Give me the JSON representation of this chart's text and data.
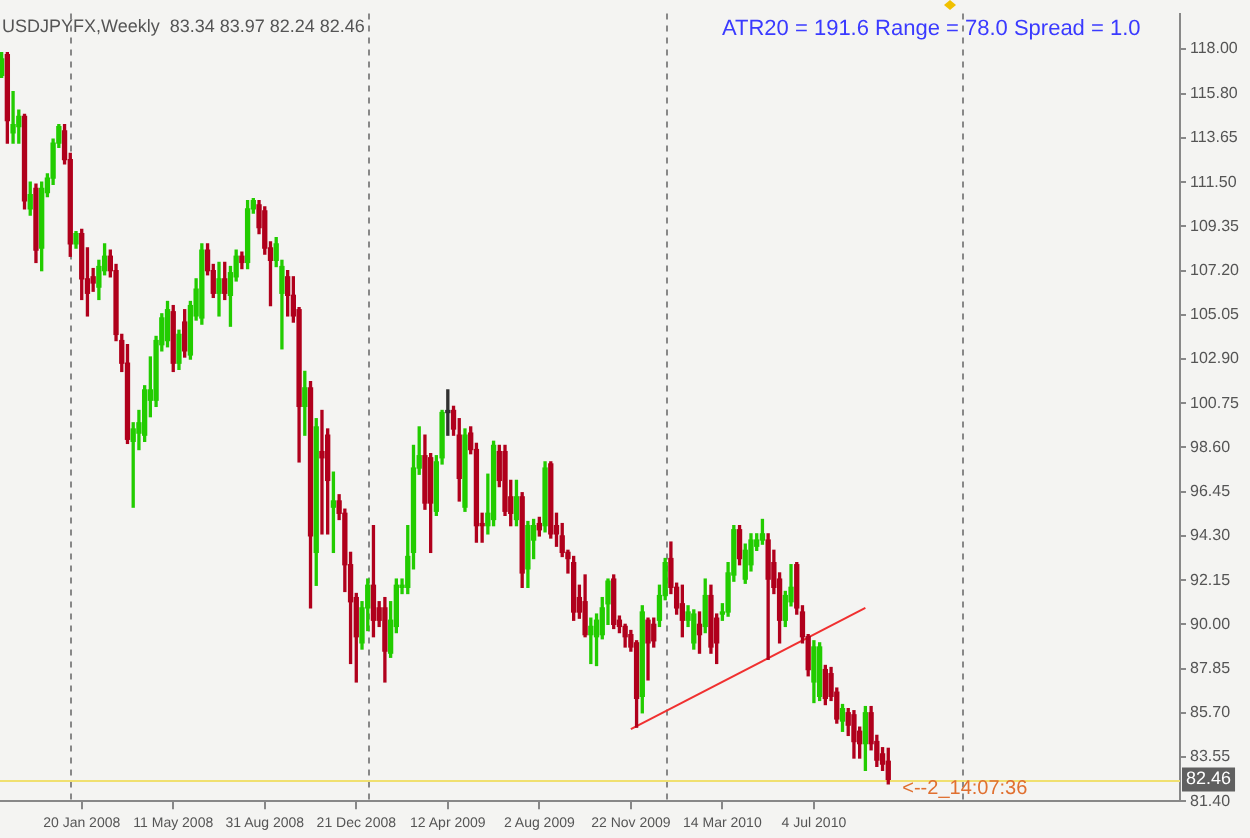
{
  "chart_data": {
    "type": "candlestick",
    "title": "USDJPYFX,Weekly  83.34 83.97 82.24 82.46",
    "annotations": [
      "ATR20 = 191.6 Range = 78.0 Spread = 1.0",
      {
        "text": "<--2_14:07:36",
        "x": "2010-10-03",
        "y": 82.0
      }
    ],
    "x": [
      "2007-10-14",
      "2007-10-21",
      "2007-10-28",
      "2007-11-04",
      "2007-11-11",
      "2007-11-18",
      "2007-11-25",
      "2007-12-02",
      "2007-12-09",
      "2007-12-16",
      "2007-12-23",
      "2007-12-30",
      "2008-01-06",
      "2008-01-13",
      "2008-01-20",
      "2008-01-27",
      "2008-02-03",
      "2008-02-10",
      "2008-02-17",
      "2008-02-24",
      "2008-03-02",
      "2008-03-09",
      "2008-03-16",
      "2008-03-23",
      "2008-03-30",
      "2008-04-06",
      "2008-04-13",
      "2008-04-20",
      "2008-04-27",
      "2008-05-04",
      "2008-05-11",
      "2008-05-18",
      "2008-05-25",
      "2008-06-01",
      "2008-06-08",
      "2008-06-15",
      "2008-06-22",
      "2008-06-29",
      "2008-07-06",
      "2008-07-13",
      "2008-07-20",
      "2008-07-27",
      "2008-08-03",
      "2008-08-10",
      "2008-08-17",
      "2008-08-24",
      "2008-08-31",
      "2008-09-07",
      "2008-09-14",
      "2008-09-21",
      "2008-09-28",
      "2008-10-05",
      "2008-10-12",
      "2008-10-19",
      "2008-10-26",
      "2008-11-02",
      "2008-11-09",
      "2008-11-16",
      "2008-11-23",
      "2008-11-30",
      "2008-12-07",
      "2008-12-14",
      "2008-12-21",
      "2008-12-28",
      "2009-01-04",
      "2009-01-11",
      "2009-01-18",
      "2009-01-25",
      "2009-02-01",
      "2009-02-08",
      "2009-02-15",
      "2009-02-22",
      "2009-03-01",
      "2009-03-08",
      "2009-03-15",
      "2009-03-22",
      "2009-03-29",
      "2009-04-05",
      "2009-04-12",
      "2009-04-19",
      "2009-04-26",
      "2009-05-03",
      "2009-05-10",
      "2009-05-17",
      "2009-05-24",
      "2009-05-31",
      "2009-06-07",
      "2009-06-14",
      "2009-06-21",
      "2009-06-28",
      "2009-07-05",
      "2009-07-12",
      "2009-07-19",
      "2009-07-26",
      "2009-08-02",
      "2009-08-09",
      "2009-08-16",
      "2009-08-23",
      "2009-08-30",
      "2009-09-06",
      "2009-09-13",
      "2009-09-20",
      "2009-09-27",
      "2009-10-04",
      "2009-10-11",
      "2009-10-18",
      "2009-10-25",
      "2009-11-01",
      "2009-11-08",
      "2009-11-15",
      "2009-11-22",
      "2009-11-29",
      "2009-12-06",
      "2009-12-13",
      "2009-12-20",
      "2009-12-27",
      "2010-01-03",
      "2010-01-10",
      "2010-01-17",
      "2010-01-24",
      "2010-01-31",
      "2010-02-07",
      "2010-02-14",
      "2010-02-21",
      "2010-02-28",
      "2010-03-07",
      "2010-03-14",
      "2010-03-21",
      "2010-03-28",
      "2010-04-04",
      "2010-04-11",
      "2010-04-18",
      "2010-04-25",
      "2010-05-02",
      "2010-05-09",
      "2010-05-16",
      "2010-05-23",
      "2010-05-30",
      "2010-06-06",
      "2010-06-13",
      "2010-06-20",
      "2010-06-27",
      "2010-07-04",
      "2010-07-11",
      "2010-07-18",
      "2010-07-25",
      "2010-08-01",
      "2010-08-08",
      "2010-08-15",
      "2010-08-22",
      "2010-08-29",
      "2010-09-05",
      "2010-09-12",
      "2010-09-19",
      "2010-09-26",
      "2010-10-03"
    ],
    "ohlc": [
      [
        116.7,
        117.8,
        116.6,
        117.5
      ],
      [
        117.7,
        117.8,
        113.4,
        114.5
      ],
      [
        113.9,
        115.9,
        113.4,
        114.3
      ],
      [
        114.2,
        115.0,
        113.4,
        114.7
      ],
      [
        114.7,
        114.8,
        110.2,
        110.6
      ],
      [
        110.2,
        111.5,
        109.9,
        110.9
      ],
      [
        111.2,
        111.4,
        107.6,
        108.2
      ],
      [
        108.3,
        111.5,
        107.2,
        111.2
      ],
      [
        111.0,
        111.9,
        110.8,
        111.7
      ],
      [
        111.7,
        113.6,
        111.4,
        113.4
      ],
      [
        113.4,
        114.3,
        113.2,
        114.2
      ],
      [
        114.0,
        114.3,
        112.4,
        112.6
      ],
      [
        112.6,
        112.9,
        107.9,
        108.5
      ],
      [
        108.5,
        109.1,
        108.3,
        109.0
      ],
      [
        109.0,
        109.2,
        105.8,
        106.8
      ],
      [
        106.8,
        108.3,
        105.0,
        106.1
      ],
      [
        106.9,
        107.3,
        106.2,
        106.6
      ],
      [
        106.4,
        107.7,
        105.8,
        107.4
      ],
      [
        107.2,
        108.5,
        107.0,
        107.9
      ],
      [
        107.9,
        108.2,
        106.9,
        107.2
      ],
      [
        107.2,
        107.5,
        103.8,
        104.1
      ],
      [
        103.8,
        104.1,
        102.3,
        102.7
      ],
      [
        102.7,
        103.6,
        98.8,
        99.0
      ],
      [
        98.9,
        99.8,
        95.7,
        99.5
      ],
      [
        99.3,
        100.4,
        98.5,
        99.8
      ],
      [
        99.2,
        101.6,
        98.9,
        101.4
      ],
      [
        100.9,
        103.0,
        100.1,
        101.4
      ],
      [
        100.9,
        104.0,
        100.6,
        103.8
      ],
      [
        103.6,
        105.1,
        103.3,
        104.9
      ],
      [
        103.8,
        105.7,
        103.5,
        105.3
      ],
      [
        105.2,
        105.5,
        102.3,
        102.7
      ],
      [
        102.7,
        104.3,
        102.4,
        104.1
      ],
      [
        104.7,
        105.3,
        103.0,
        103.3
      ],
      [
        103.1,
        105.7,
        102.9,
        105.5
      ],
      [
        105.0,
        106.8,
        104.8,
        106.3
      ],
      [
        104.9,
        108.5,
        104.6,
        108.2
      ],
      [
        108.2,
        108.5,
        107.0,
        107.2
      ],
      [
        107.2,
        107.5,
        105.9,
        106.1
      ],
      [
        106.1,
        107.6,
        105.0,
        106.8
      ],
      [
        106.8,
        107.6,
        105.8,
        106.1
      ],
      [
        106.0,
        107.4,
        104.5,
        107.1
      ],
      [
        106.9,
        108.2,
        106.7,
        107.9
      ],
      [
        107.9,
        108.1,
        107.3,
        107.6
      ],
      [
        107.6,
        110.6,
        107.3,
        110.2
      ],
      [
        110.2,
        110.7,
        110.0,
        110.6
      ],
      [
        110.4,
        110.6,
        109.0,
        109.3
      ],
      [
        110.1,
        110.3,
        108.0,
        108.3
      ],
      [
        108.3,
        108.6,
        105.5,
        107.7
      ],
      [
        107.7,
        108.8,
        107.4,
        108.5
      ],
      [
        106.1,
        107.7,
        103.4,
        107.4
      ],
      [
        106.9,
        107.2,
        105.0,
        106.0
      ],
      [
        106.0,
        106.9,
        104.7,
        105.0
      ],
      [
        105.3,
        105.4,
        97.9,
        100.6
      ],
      [
        100.6,
        102.3,
        99.2,
        101.5
      ],
      [
        101.5,
        101.8,
        90.8,
        94.3
      ],
      [
        93.5,
        100.0,
        91.9,
        99.6
      ],
      [
        98.4,
        100.4,
        94.4,
        98.1
      ],
      [
        99.2,
        99.5,
        94.4,
        97.0
      ],
      [
        95.7,
        97.4,
        93.5,
        96.0
      ],
      [
        96.0,
        96.3,
        95.1,
        95.4
      ],
      [
        95.4,
        95.6,
        91.6,
        92.9
      ],
      [
        92.9,
        93.5,
        88.1,
        91.1
      ],
      [
        91.3,
        91.5,
        87.2,
        89.4
      ],
      [
        89.1,
        91.1,
        88.8,
        90.8
      ],
      [
        90.8,
        92.2,
        89.7,
        91.9
      ],
      [
        91.9,
        94.8,
        89.4,
        90.2
      ],
      [
        90.8,
        91.1,
        89.9,
        90.2
      ],
      [
        90.8,
        91.3,
        87.2,
        88.7
      ],
      [
        88.6,
        91.1,
        88.4,
        90.2
      ],
      [
        89.9,
        92.2,
        89.6,
        91.9
      ],
      [
        91.8,
        92.2,
        91.5,
        91.9
      ],
      [
        91.8,
        94.8,
        91.5,
        93.3
      ],
      [
        93.5,
        98.7,
        92.7,
        97.6
      ],
      [
        97.6,
        99.6,
        97.3,
        98.2
      ],
      [
        98.2,
        99.2,
        95.6,
        95.9
      ],
      [
        98.1,
        98.3,
        93.5,
        95.9
      ],
      [
        95.5,
        98.2,
        95.3,
        97.9
      ],
      [
        98.1,
        100.4,
        97.8,
        100.3
      ],
      [
        100.3,
        101.4,
        99.2,
        100.3
      ],
      [
        100.4,
        100.6,
        99.2,
        99.5
      ],
      [
        99.2,
        100.0,
        96.0,
        97.1
      ],
      [
        95.7,
        99.5,
        95.5,
        99.2
      ],
      [
        99.3,
        99.6,
        98.3,
        98.5
      ],
      [
        98.5,
        98.8,
        94.0,
        94.8
      ],
      [
        94.9,
        95.4,
        94.0,
        94.8
      ],
      [
        94.8,
        97.3,
        94.4,
        95.4
      ],
      [
        95.1,
        98.9,
        94.8,
        98.7
      ],
      [
        98.4,
        98.7,
        96.7,
        97.0
      ],
      [
        98.4,
        98.7,
        95.3,
        95.5
      ],
      [
        96.2,
        97.0,
        94.8,
        95.4
      ],
      [
        95.1,
        97.0,
        94.8,
        96.2
      ],
      [
        96.2,
        96.4,
        91.8,
        92.5
      ],
      [
        92.7,
        95.0,
        91.8,
        94.8
      ],
      [
        94.1,
        95.1,
        93.2,
        94.8
      ],
      [
        94.9,
        95.2,
        94.3,
        94.6
      ],
      [
        94.8,
        97.9,
        94.5,
        97.6
      ],
      [
        97.8,
        97.9,
        94.2,
        94.4
      ],
      [
        94.8,
        95.4,
        93.8,
        94.4
      ],
      [
        94.3,
        94.9,
        93.3,
        93.5
      ],
      [
        93.5,
        93.6,
        92.5,
        93.2
      ],
      [
        93.0,
        93.3,
        90.2,
        90.6
      ],
      [
        91.3,
        91.9,
        90.3,
        90.6
      ],
      [
        91.1,
        92.4,
        89.4,
        89.5
      ],
      [
        89.5,
        90.3,
        88.1,
        89.9
      ],
      [
        89.4,
        90.5,
        88.0,
        90.2
      ],
      [
        89.5,
        91.3,
        89.3,
        90.8
      ],
      [
        91.0,
        92.2,
        90.0,
        92.1
      ],
      [
        92.2,
        92.4,
        89.8,
        90.0
      ],
      [
        90.2,
        90.4,
        89.6,
        89.9
      ],
      [
        89.9,
        90.0,
        88.9,
        89.4
      ],
      [
        89.5,
        89.7,
        88.7,
        88.9
      ],
      [
        89.1,
        89.2,
        85.0,
        86.4
      ],
      [
        86.5,
        90.9,
        85.7,
        90.6
      ],
      [
        90.2,
        90.3,
        87.3,
        89.1
      ],
      [
        90.0,
        90.3,
        88.9,
        89.2
      ],
      [
        90.2,
        91.9,
        89.9,
        91.4
      ],
      [
        91.4,
        93.2,
        91.2,
        93.0
      ],
      [
        93.2,
        94.0,
        91.5,
        91.8
      ],
      [
        91.8,
        92.0,
        90.5,
        90.8
      ],
      [
        91.0,
        91.9,
        89.4,
        90.2
      ],
      [
        90.2,
        90.9,
        89.9,
        90.6
      ],
      [
        89.1,
        90.7,
        88.8,
        90.5
      ],
      [
        90.0,
        90.6,
        88.6,
        89.5
      ],
      [
        89.9,
        92.2,
        89.6,
        91.4
      ],
      [
        91.4,
        91.9,
        88.6,
        88.9
      ],
      [
        90.3,
        90.5,
        88.1,
        89.1
      ],
      [
        90.5,
        91.0,
        90.2,
        90.6
      ],
      [
        90.6,
        93.0,
        90.4,
        92.5
      ],
      [
        92.4,
        94.8,
        92.1,
        94.6
      ],
      [
        94.6,
        94.8,
        92.9,
        93.2
      ],
      [
        92.2,
        93.9,
        92.0,
        93.6
      ],
      [
        92.9,
        94.4,
        92.6,
        94.1
      ],
      [
        93.8,
        94.4,
        93.6,
        94.1
      ],
      [
        94.1,
        95.1,
        93.9,
        94.4
      ],
      [
        94.1,
        94.4,
        88.3,
        92.2
      ],
      [
        93.0,
        93.6,
        91.5,
        91.8
      ],
      [
        92.2,
        92.5,
        89.1,
        90.2
      ],
      [
        90.2,
        91.6,
        89.9,
        91.4
      ],
      [
        91.1,
        92.9,
        90.9,
        91.8
      ],
      [
        92.9,
        93.0,
        90.5,
        90.8
      ],
      [
        90.6,
        90.9,
        89.1,
        89.4
      ],
      [
        89.4,
        89.5,
        87.5,
        87.8
      ],
      [
        87.2,
        89.2,
        86.2,
        88.9
      ],
      [
        86.5,
        89.1,
        86.3,
        88.9
      ],
      [
        87.8,
        88.0,
        86.1,
        86.4
      ],
      [
        87.6,
        87.9,
        86.3,
        86.5
      ],
      [
        86.7,
        86.9,
        85.2,
        85.4
      ],
      [
        85.3,
        86.1,
        84.8,
        85.9
      ],
      [
        85.7,
        85.9,
        84.6,
        85.1
      ],
      [
        85.6,
        85.8,
        83.5,
        84.3
      ],
      [
        84.8,
        85.0,
        83.5,
        84.2
      ],
      [
        84.2,
        86.0,
        82.9,
        85.7
      ],
      [
        85.7,
        86.0,
        83.9,
        84.2
      ],
      [
        84.3,
        84.6,
        83.1,
        83.4
      ],
      [
        83.7,
        84.0,
        82.9,
        83.2
      ],
      [
        83.34,
        83.97,
        82.24,
        82.46
      ]
    ],
    "series": [
      {
        "type": "line",
        "color": "#f03030",
        "x": [
          "2009-11-22",
          "2010-09-05"
        ],
        "values": [
          84.9,
          90.8
        ]
      }
    ],
    "xlim": [
      "2007-10-12",
      "2011-09-25"
    ],
    "xticks": [
      {
        "value": "2008-01-20",
        "label": "20 Jan 2008"
      },
      {
        "value": "2008-05-11",
        "label": "11 May 2008"
      },
      {
        "value": "2008-08-31",
        "label": "31 Aug 2008"
      },
      {
        "value": "2008-12-21",
        "label": "21 Dec 2008"
      },
      {
        "value": "2009-04-12",
        "label": "12 Apr 2009"
      },
      {
        "value": "2009-08-02",
        "label": "2 Aug 2009"
      },
      {
        "value": "2009-11-22",
        "label": "22 Nov 2009"
      },
      {
        "value": "2010-03-14",
        "label": "14 Mar 2010"
      },
      {
        "value": "2010-07-04",
        "label": "4 Jul 2010"
      }
    ],
    "ylim": [
      81.4,
      119.7
    ],
    "yticks": [
      {
        "value": 118,
        "label": "118.00"
      },
      {
        "value": 115.8,
        "label": "115.80"
      },
      {
        "value": 113.65,
        "label": "113.65"
      },
      {
        "value": 111.5,
        "label": "111.50"
      },
      {
        "value": 109.35,
        "label": "109.35"
      },
      {
        "value": 107.2,
        "label": "107.20"
      },
      {
        "value": 105.05,
        "label": "105.05"
      },
      {
        "value": 102.9,
        "label": "102.90"
      },
      {
        "value": 100.75,
        "label": "100.75"
      },
      {
        "value": 98.6,
        "label": "98.60"
      },
      {
        "value": 96.45,
        "label": "96.45"
      },
      {
        "value": 94.3,
        "label": "94.30"
      },
      {
        "value": 92.15,
        "label": "92.15"
      },
      {
        "value": 90,
        "label": "90.00"
      },
      {
        "value": 87.85,
        "label": "87.85"
      },
      {
        "value": 85.7,
        "label": "85.70"
      },
      {
        "value": 83.55,
        "label": "83.55"
      },
      {
        "value": 81.4,
        "label": "81.40"
      }
    ],
    "ref_lines": [
      {
        "axis": "x",
        "value": "2008-01-06",
        "color": "#888888",
        "line_style": "dashed"
      },
      {
        "axis": "x",
        "value": "2009-01-04",
        "color": "#888888",
        "line_style": "dashed"
      },
      {
        "axis": "x",
        "value": "2010-01-03",
        "color": "#888888",
        "line_style": "dashed"
      },
      {
        "axis": "x",
        "value": "2011-01-02",
        "color": "#888888",
        "line_style": "dashed"
      },
      {
        "axis": "y",
        "value": 82.46,
        "label": "82.46",
        "color": "#f0e070"
      }
    ],
    "grid": false,
    "legend": false
  }
}
